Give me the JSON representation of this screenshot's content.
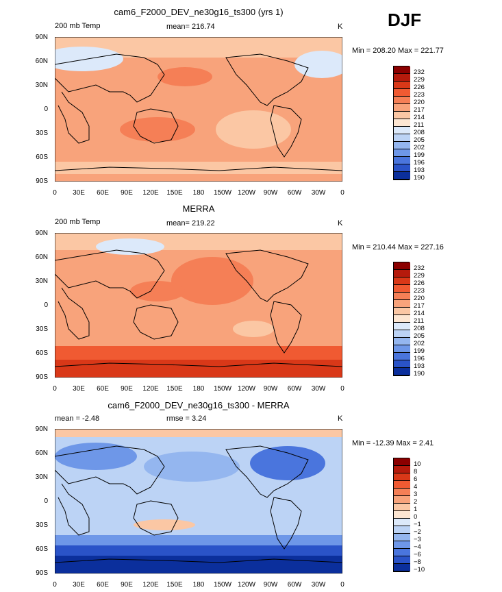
{
  "season": "DJF",
  "panels": [
    {
      "title": "cam6_F2000_DEV_ne30g16_ts300 (yrs 1)",
      "left_label": "200 mb Temp",
      "mid_label": "mean= 216.74",
      "rmse_label": "",
      "units": "K",
      "minmax": "Min = 208.20 Max = 221.77",
      "colorbar": [
        "232",
        "229",
        "226",
        "223",
        "220",
        "217",
        "214",
        "211",
        "208",
        "205",
        "202",
        "199",
        "196",
        "193",
        "190"
      ],
      "colors": [
        "#8b0000",
        "#b51a0c",
        "#d93818",
        "#f05a32",
        "#f57f56",
        "#f8a37b",
        "#fbc7a4",
        "#fde6d2",
        "#dce9fa",
        "#bcd3f5",
        "#94b6ef",
        "#6e97e8",
        "#4a75dd",
        "#2a53c8",
        "#0b2f9c"
      ]
    },
    {
      "title": "MERRA",
      "left_label": "200 mb Temp",
      "mid_label": "mean= 219.22",
      "rmse_label": "",
      "units": "K",
      "minmax": "Min = 210.44 Max = 227.16",
      "colorbar": [
        "232",
        "229",
        "226",
        "223",
        "220",
        "217",
        "214",
        "211",
        "208",
        "205",
        "202",
        "199",
        "196",
        "193",
        "190"
      ],
      "colors": [
        "#8b0000",
        "#b51a0c",
        "#d93818",
        "#f05a32",
        "#f57f56",
        "#f8a37b",
        "#fbc7a4",
        "#fde6d2",
        "#dce9fa",
        "#bcd3f5",
        "#94b6ef",
        "#6e97e8",
        "#4a75dd",
        "#2a53c8",
        "#0b2f9c"
      ]
    },
    {
      "title": "cam6_F2000_DEV_ne30g16_ts300 - MERRA",
      "left_label": "mean =   -2.48",
      "mid_label": "rmse =    3.24",
      "rmse_label": "",
      "units": "K",
      "minmax": "Min = -12.39 Max =    2.41",
      "colorbar": [
        "10",
        "8",
        "6",
        "4",
        "3",
        "2",
        "1",
        "0",
        "−1",
        "−2",
        "−3",
        "−4",
        "−6",
        "−8",
        "−10"
      ],
      "colors": [
        "#8b0000",
        "#b51a0c",
        "#d93818",
        "#f05a32",
        "#f57f56",
        "#f8a37b",
        "#fbc7a4",
        "#fde6d2",
        "#dce9fa",
        "#bcd3f5",
        "#94b6ef",
        "#6e97e8",
        "#4a75dd",
        "#2a53c8",
        "#0b2f9c"
      ]
    }
  ],
  "lat_ticks": [
    "90N",
    "60N",
    "30N",
    "0",
    "30S",
    "60S",
    "90S"
  ],
  "lon_ticks": [
    "0",
    "30E",
    "60E",
    "90E",
    "120E",
    "150E",
    "180",
    "150W",
    "120W",
    "90W",
    "60W",
    "30W",
    "0"
  ]
}
